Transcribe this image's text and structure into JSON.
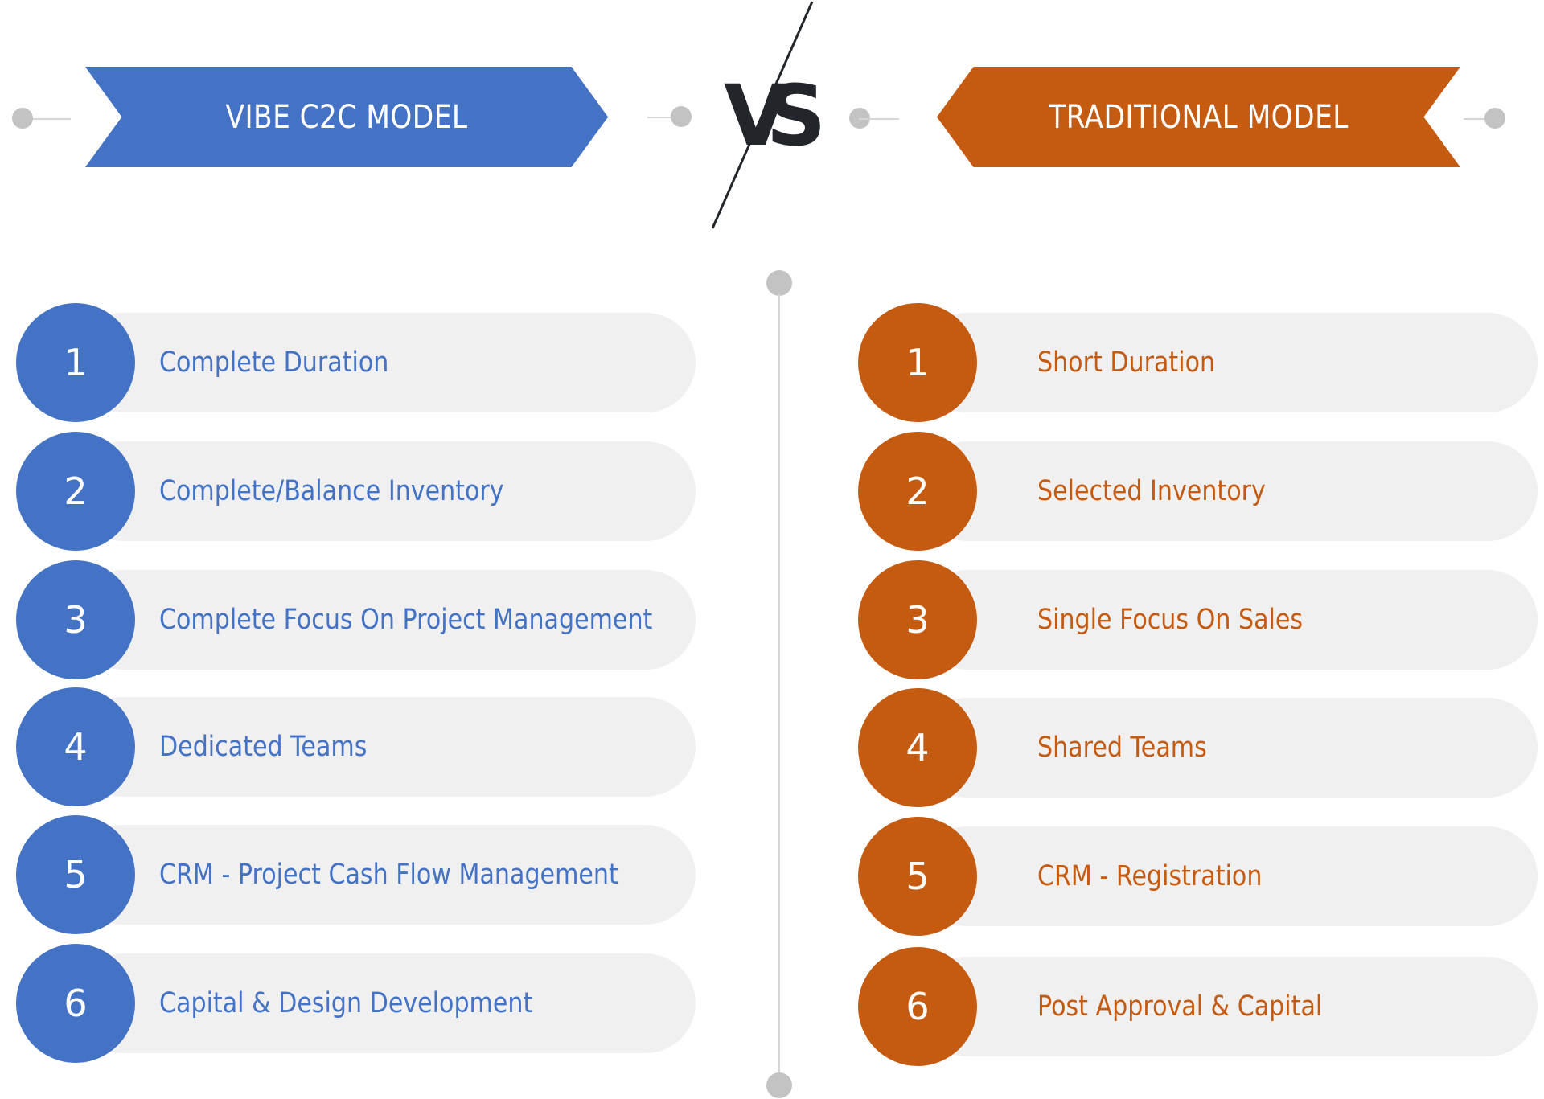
{
  "colors": {
    "left_accent": "#4472c4",
    "right_accent": "#c55a11",
    "pill_bg": "#f0f0f0",
    "connector": "#c3c3c3"
  },
  "left": {
    "title": "VIBE C2C MODEL",
    "rows": [
      {
        "num": "1",
        "label": "Complete Duration"
      },
      {
        "num": "2",
        "label": "Complete/Balance Inventory"
      },
      {
        "num": "3",
        "label": "Complete Focus On Project Management"
      },
      {
        "num": "4",
        "label": "Dedicated Teams"
      },
      {
        "num": "5",
        "label": "CRM - Project Cash Flow Management"
      },
      {
        "num": "6",
        "label": "Capital & Design Development"
      }
    ]
  },
  "center": {
    "vs": "VS"
  },
  "right": {
    "title": "TRADITIONAL MODEL",
    "rows": [
      {
        "num": "1",
        "label": "Short Duration"
      },
      {
        "num": "2",
        "label": "Selected Inventory"
      },
      {
        "num": "3",
        "label": "Single Focus On Sales"
      },
      {
        "num": "4",
        "label": "Shared Teams"
      },
      {
        "num": "5",
        "label": "CRM - Registration"
      },
      {
        "num": "6",
        "label": "Post Approval & Capital"
      }
    ]
  }
}
